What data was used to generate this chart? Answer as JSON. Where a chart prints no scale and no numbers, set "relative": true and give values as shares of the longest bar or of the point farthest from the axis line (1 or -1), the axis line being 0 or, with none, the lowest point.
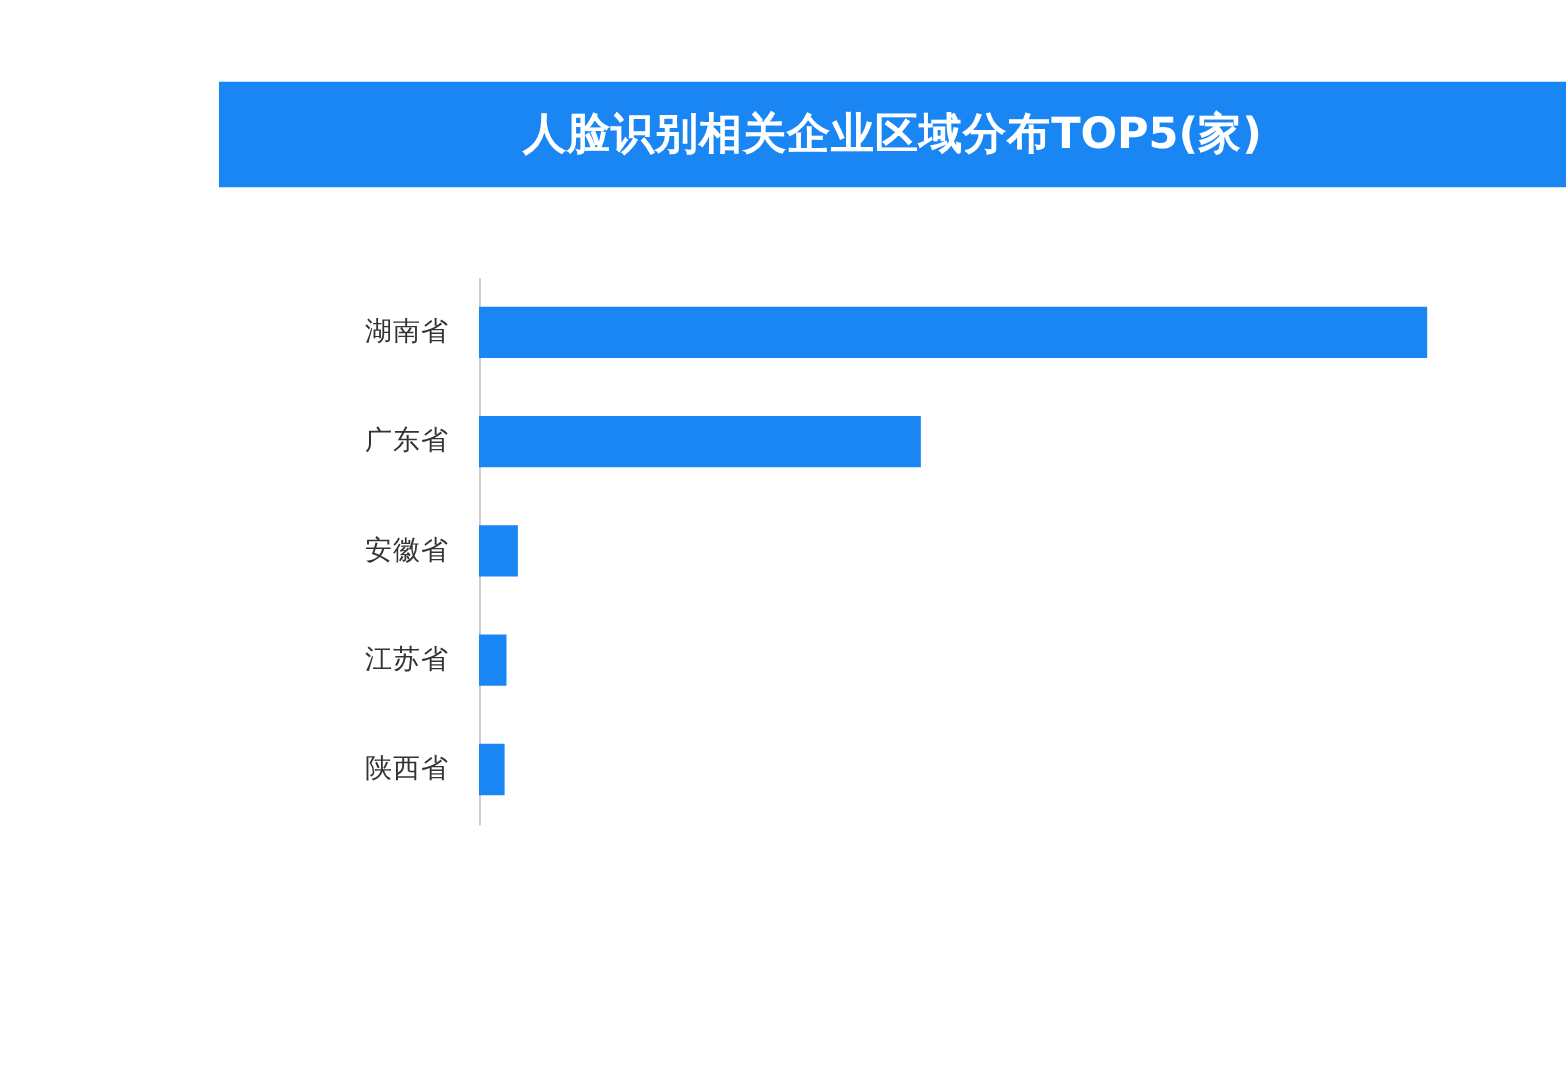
{
  "chart_data": {
    "type": "bar",
    "orientation": "horizontal",
    "relative": true,
    "title": "人脸识别相关企业区域分布TOP5(家)",
    "categories": [
      "湖南省",
      "广东省",
      "安徽省",
      "江苏省",
      "陕西省"
    ],
    "values": [
      1,
      0.466,
      0.041,
      0.029,
      0.027
    ],
    "color": "#1a86f4"
  }
}
